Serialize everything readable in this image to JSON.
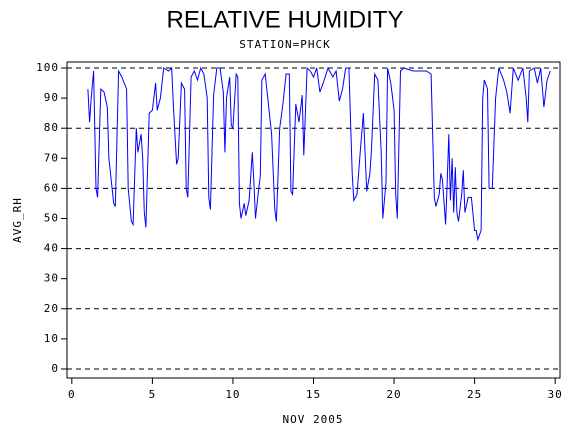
{
  "chart_data": {
    "type": "line",
    "title": "RELATIVE HUMIDITY",
    "subtitle": "STATION=PHCK",
    "x_label": "NOV 2005",
    "y_label": "AVG_RH",
    "xlim": [
      -0.3,
      30.3
    ],
    "xticks": [
      0,
      5,
      10,
      15,
      20,
      25,
      30
    ],
    "ylim": [
      -3,
      102
    ],
    "yticks": [
      0,
      10,
      20,
      30,
      40,
      50,
      60,
      70,
      80,
      90,
      100
    ],
    "ygrid": [
      0,
      20,
      40,
      60,
      80,
      100
    ],
    "series": [
      {
        "color": "#0000ff",
        "x": [
          1.0,
          1.1,
          1.2,
          1.35,
          1.5,
          1.6,
          1.8,
          2.0,
          2.2,
          2.3,
          2.5,
          2.6,
          2.7,
          2.9,
          3.1,
          3.4,
          3.5,
          3.7,
          3.8,
          4.0,
          4.1,
          4.3,
          4.4,
          4.5,
          4.6,
          4.8,
          5.0,
          5.2,
          5.3,
          5.5,
          5.7,
          6.0,
          6.2,
          6.3,
          6.5,
          6.6,
          6.8,
          7.0,
          7.1,
          7.2,
          7.4,
          7.6,
          7.8,
          8.0,
          8.2,
          8.4,
          8.5,
          8.6,
          8.8,
          9.0,
          9.2,
          9.4,
          9.5,
          9.6,
          9.8,
          9.9,
          10.0,
          10.2,
          10.3,
          10.4,
          10.5,
          10.7,
          10.8,
          11.0,
          11.2,
          11.3,
          11.4,
          11.6,
          11.7,
          11.8,
          12.0,
          12.2,
          12.4,
          12.6,
          12.7,
          12.9,
          13.1,
          13.3,
          13.5,
          13.6,
          13.7,
          13.9,
          14.1,
          14.3,
          14.4,
          14.6,
          14.8,
          15.0,
          15.2,
          15.4,
          15.6,
          15.9,
          16.2,
          16.4,
          16.6,
          16.8,
          17.0,
          17.2,
          17.4,
          17.5,
          17.7,
          17.9,
          18.1,
          18.3,
          18.5,
          18.6,
          18.8,
          19.0,
          19.2,
          19.3,
          19.5,
          19.6,
          19.8,
          20.0,
          20.1,
          20.2,
          20.4,
          20.6,
          21.2,
          22.0,
          22.3,
          22.5,
          22.6,
          22.8,
          22.9,
          23.0,
          23.2,
          23.3,
          23.4,
          23.5,
          23.6,
          23.7,
          23.8,
          23.9,
          24.0,
          24.2,
          24.3,
          24.4,
          24.6,
          24.8,
          25.0,
          25.1,
          25.2,
          25.4,
          25.5,
          25.6,
          25.8,
          25.9,
          26.1,
          26.3,
          26.5,
          26.8,
          27.0,
          27.2,
          27.4,
          27.7,
          28.0,
          28.2,
          28.3,
          28.4,
          28.7,
          28.9,
          29.1,
          29.3,
          29.5,
          29.7
        ],
        "values": [
          93,
          82,
          90,
          99,
          60,
          57,
          93,
          92,
          87,
          70,
          60,
          55,
          54,
          99,
          97,
          93,
          60,
          49,
          48,
          80,
          72,
          78,
          70,
          52,
          47,
          85,
          86,
          95,
          86,
          90,
          100,
          99,
          100,
          88,
          68,
          70,
          95,
          93,
          60,
          57,
          97,
          99,
          96,
          100,
          98,
          90,
          57,
          53,
          91,
          100,
          100,
          92,
          72,
          90,
          97,
          81,
          80,
          98,
          97,
          55,
          50,
          55,
          51,
          56,
          72,
          62,
          50,
          60,
          64,
          96,
          98,
          88,
          78,
          53,
          49,
          80,
          88,
          98,
          98,
          59,
          58,
          88,
          82,
          91,
          71,
          100,
          99,
          97,
          100,
          92,
          95,
          100,
          97,
          99,
          89,
          93,
          100,
          100,
          65,
          56,
          58,
          72,
          85,
          59,
          65,
          73,
          98,
          96,
          72,
          50,
          62,
          100,
          95,
          86,
          58,
          50,
          99,
          100,
          99,
          99,
          98,
          57,
          54,
          58,
          65,
          63,
          48,
          62,
          78,
          56,
          70,
          52,
          67,
          52,
          49,
          58,
          66,
          52,
          57,
          57,
          46,
          46,
          43,
          46,
          90,
          96,
          93,
          60,
          60,
          90,
          100,
          96,
          92,
          85,
          100,
          96,
          100,
          90,
          82,
          99,
          100,
          95,
          100,
          87,
          96,
          99
        ]
      }
    ]
  }
}
